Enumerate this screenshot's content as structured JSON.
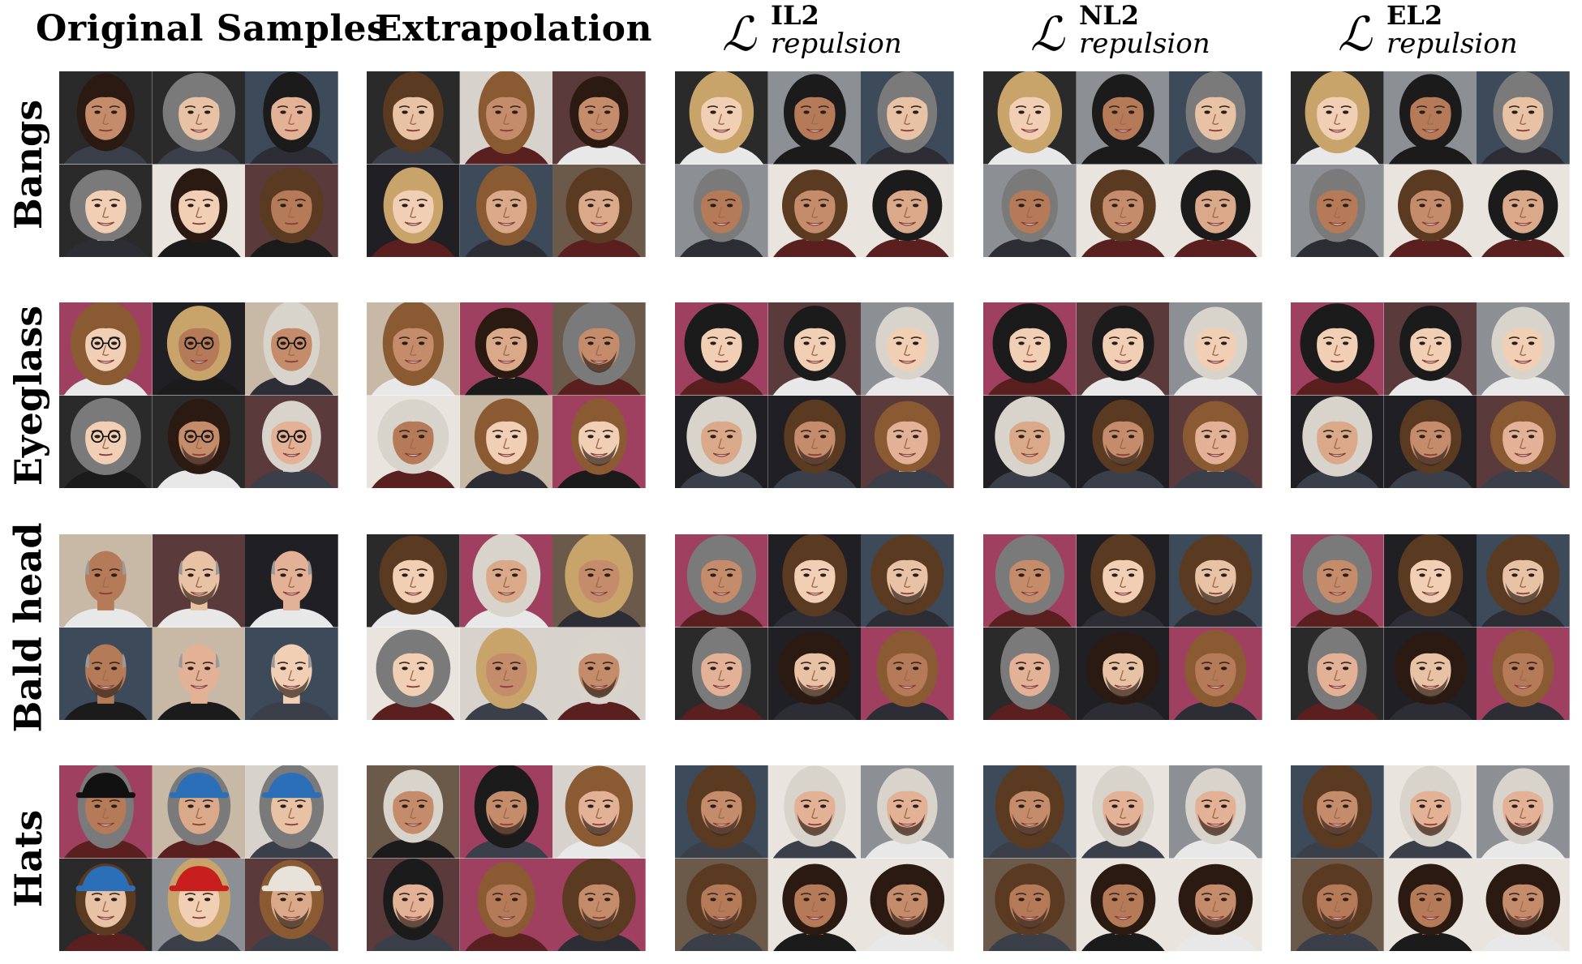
{
  "column_headers": [
    {
      "type": "text",
      "text": "Original Samples"
    },
    {
      "type": "text",
      "text": "Extrapolation"
    },
    {
      "type": "math",
      "main": "ℒ",
      "sup": "IL2",
      "sub": "repulsion"
    },
    {
      "type": "math",
      "main": "ℒ",
      "sup": "NL2",
      "sub": "repulsion"
    },
    {
      "type": "math",
      "main": "ℒ",
      "sup": "EL2",
      "sub": "repulsion"
    }
  ],
  "row_labels": [
    "Bangs",
    "Eyeglass",
    "Bald head",
    "Hats"
  ],
  "palette": {
    "backgrounds": [
      "#2b2a2a",
      "#d8d2cc",
      "#5a3a3a",
      "#8c8f94",
      "#1f1f24",
      "#c7b9a6",
      "#3d4a5a",
      "#e9e4dd",
      "#6b5a4a",
      "#a04060"
    ],
    "skins": [
      "#e8c2a4",
      "#d9a989",
      "#c48c6b",
      "#f0cfb4",
      "#b57a58",
      "#e2b196"
    ],
    "hairs": [
      "#2a1a12",
      "#5b3a22",
      "#8a5a32",
      "#c9a46a",
      "#1b1b1b",
      "#7a7a7a",
      "#d8d4cc"
    ],
    "accents": [
      "#c81e1e",
      "#111111",
      "#2a6fb8",
      "#e7e3da"
    ]
  }
}
